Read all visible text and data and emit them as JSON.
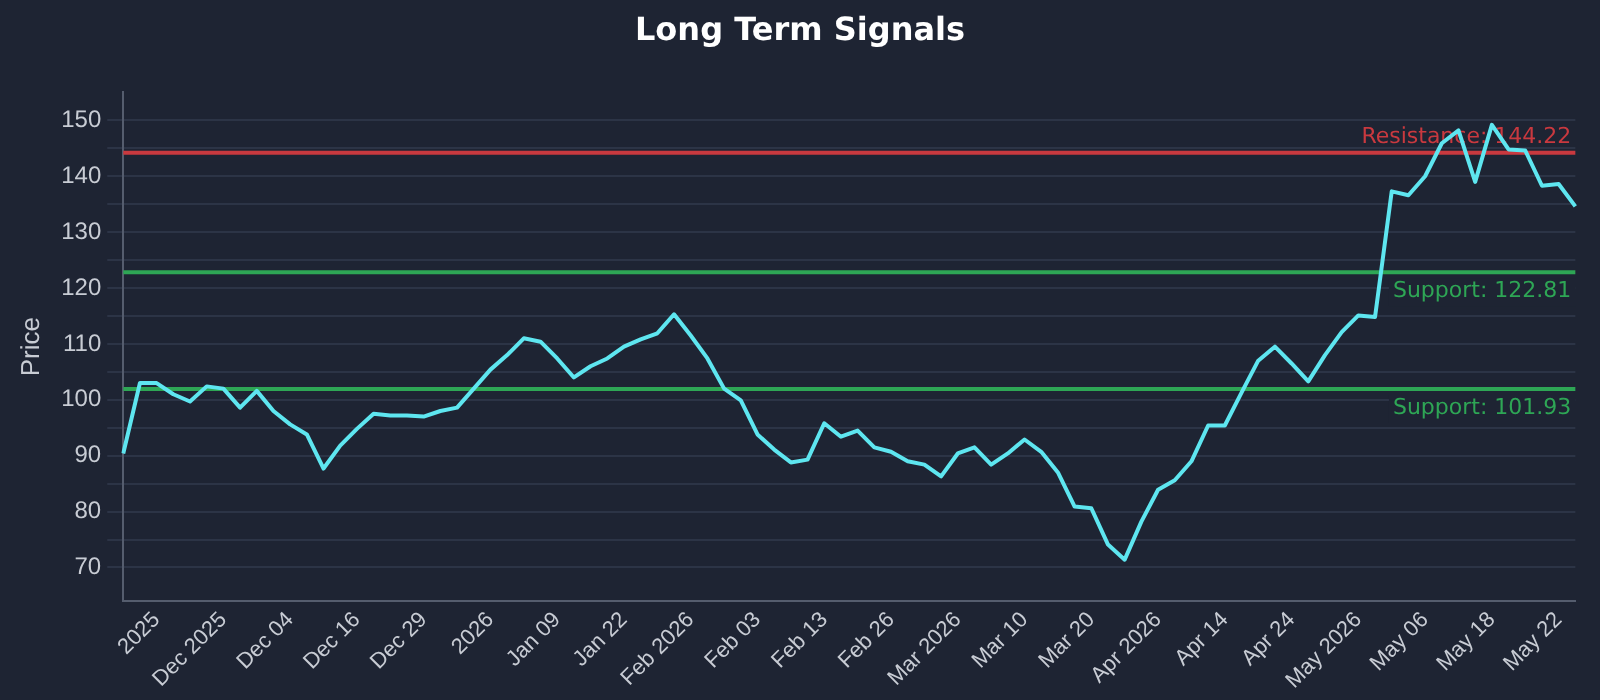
{
  "chart_data": {
    "type": "line",
    "title": "Long Term Signals",
    "ylabel": "Price",
    "categories": [
      null,
      null,
      "2025",
      null,
      null,
      null,
      "Dec 2025",
      null,
      null,
      null,
      "Dec 04",
      null,
      null,
      null,
      "Dec 16",
      null,
      null,
      null,
      "Dec 29",
      null,
      null,
      null,
      "2026",
      null,
      null,
      null,
      "Jan 09",
      null,
      null,
      null,
      "Jan 22",
      null,
      null,
      null,
      "Feb 2026",
      null,
      null,
      null,
      "Feb 03",
      null,
      null,
      null,
      "Feb 13",
      null,
      null,
      null,
      "Feb 26",
      null,
      null,
      null,
      "Mar 2026",
      null,
      null,
      null,
      "Mar 10",
      null,
      null,
      null,
      "Mar 20",
      null,
      null,
      null,
      "Apr 2026",
      null,
      null,
      null,
      "Apr 14",
      null,
      null,
      null,
      "Apr 24",
      null,
      null,
      null,
      "May 2026",
      null,
      null,
      null,
      "May 06",
      null,
      null,
      null,
      "May 18",
      null,
      null,
      null,
      "May 22",
      null
    ],
    "series": [
      {
        "color": "#5ee6f0",
        "values": [
          90.4,
          103,
          103,
          101,
          99.7,
          102.4,
          102,
          98.6,
          101.6,
          98,
          95.6,
          93.8,
          87.7,
          91.8,
          94.8,
          97.5,
          97.2,
          97.2,
          97,
          98,
          98.6,
          102,
          105.4,
          108,
          111,
          110.4,
          107.4,
          104,
          106,
          107.4,
          109.5,
          110.8,
          111.9,
          115.3,
          111.5,
          107.4,
          102,
          99.9,
          93.8,
          91.1,
          88.8,
          89.3,
          95.8,
          93.4,
          94.5,
          91.5,
          90.7,
          89,
          88.4,
          86.3,
          90.4,
          91.5,
          88.4,
          90.4,
          92.9,
          90.7,
          87,
          80.9,
          80.6,
          74.1,
          71.4,
          78.2,
          83.9,
          85.6,
          89,
          95.4,
          95.4,
          101.3,
          107,
          109.5,
          106.5,
          103.3,
          108,
          112.1,
          115.1,
          114.8,
          137.3,
          136.6,
          140,
          145.9,
          148.2,
          139,
          149.2,
          144.8,
          144.6,
          138.3,
          138.6,
          134.6
        ]
      }
    ],
    "ylim": [
      64,
      155
    ],
    "yticks": [
      70,
      {
        "value": 75,
        "label": null
      },
      80,
      {
        "value": 85,
        "label": null
      },
      90,
      {
        "value": 95,
        "label": null
      },
      100,
      {
        "value": 105,
        "label": null
      },
      110,
      {
        "value": 115,
        "label": null
      },
      120,
      {
        "value": 125,
        "label": null
      },
      130,
      {
        "value": 135,
        "label": null
      },
      140,
      {
        "value": 145,
        "label": null
      },
      150
    ],
    "grid": "y",
    "marker": "none",
    "line_style": "solid",
    "ref_lines": [
      {
        "axis": "y",
        "value": 144.22,
        "label": "Resistance: 144.22",
        "color": "#c9393f"
      },
      {
        "axis": "y",
        "value": 122.81,
        "label": "Support: 122.81",
        "color": "#2ea655"
      },
      {
        "axis": "y",
        "value": 101.93,
        "label": "Support: 101.93",
        "color": "#2ea655"
      }
    ]
  }
}
